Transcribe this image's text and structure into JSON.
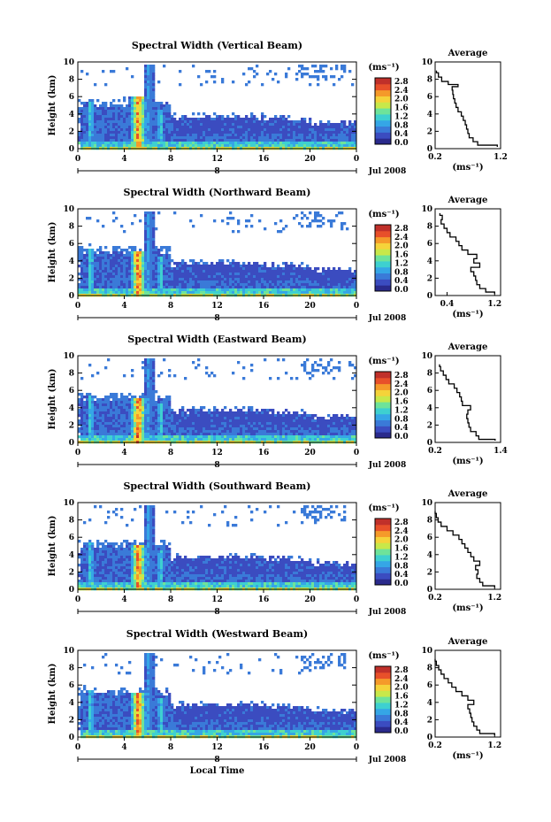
{
  "figure": {
    "xlabel": "Local Time",
    "ylabel": "Height (km)",
    "xticks": [
      "0",
      "4",
      "8",
      "12",
      "16",
      "20",
      "0"
    ],
    "yticks": [
      "0",
      "2",
      "4",
      "6",
      "8",
      "10"
    ],
    "date_label": "Jul 2008",
    "day_marker": "8",
    "unit_label": "(ms⁻¹)",
    "avg_title": "Average",
    "avg_xlabel": "(ms⁻¹)",
    "colorbar_ticks": [
      "0.0",
      "0.4",
      "0.8",
      "1.2",
      "1.6",
      "2.0",
      "2.4",
      "2.8"
    ],
    "colorscale": [
      "#2a2a8c",
      "#3b4cc0",
      "#3a7ad8",
      "#35a6e6",
      "#3ed0d0",
      "#6ee39a",
      "#c8e84a",
      "#f5d33a",
      "#f59a2a",
      "#e8502a",
      "#c0302a"
    ]
  },
  "chart_data": [
    {
      "type": "heatmap",
      "title": "Spectral Width (Vertical Beam)",
      "x_range": [
        0,
        24
      ],
      "y_range": [
        0,
        10
      ],
      "color_range": [
        0.0,
        2.8
      ],
      "avg_profile": {
        "xticks": [
          "0.2",
          "1.2"
        ],
        "xlim": [
          0.2,
          1.2
        ],
        "height": [
          0.2,
          0.6,
          1.0,
          1.5,
          2.0,
          2.5,
          3.0,
          3.5,
          4.0,
          4.5,
          5.0,
          5.5,
          6.0,
          6.5,
          7.0,
          7.3,
          7.5,
          8.0,
          8.5,
          9.0
        ],
        "value": [
          1.15,
          0.85,
          0.78,
          0.72,
          0.7,
          0.68,
          0.66,
          0.63,
          0.6,
          0.55,
          0.52,
          0.5,
          0.48,
          0.47,
          0.46,
          0.55,
          0.4,
          0.3,
          0.25,
          0.22
        ]
      }
    },
    {
      "type": "heatmap",
      "title": "Spectral Width (Northward Beam)",
      "x_range": [
        0,
        24
      ],
      "y_range": [
        0,
        10
      ],
      "color_range": [
        0.0,
        2.8
      ],
      "avg_profile": {
        "xticks": [
          "0.4",
          "1.2"
        ],
        "xlim": [
          0.2,
          1.3
        ],
        "height": [
          0.2,
          0.6,
          1.0,
          1.5,
          2.0,
          2.5,
          3.0,
          3.5,
          4.0,
          4.5,
          5.0,
          5.5,
          6.0,
          6.5,
          7.0,
          7.5,
          8.0,
          8.5,
          9.0,
          9.5
        ],
        "value": [
          1.2,
          1.05,
          0.95,
          0.9,
          0.88,
          0.85,
          0.8,
          0.95,
          0.85,
          0.9,
          0.75,
          0.65,
          0.6,
          0.55,
          0.45,
          0.4,
          0.35,
          0.3,
          0.32,
          0.28
        ]
      }
    },
    {
      "type": "heatmap",
      "title": "Spectral Width (Eastward Beam)",
      "x_range": [
        0,
        24
      ],
      "y_range": [
        0,
        10
      ],
      "color_range": [
        0.0,
        2.8
      ],
      "avg_profile": {
        "xticks": [
          "0.2",
          "1.4"
        ],
        "xlim": [
          0.2,
          1.4
        ],
        "height": [
          0.2,
          0.5,
          1.0,
          1.5,
          2.0,
          2.5,
          3.0,
          3.5,
          4.0,
          4.5,
          5.0,
          5.5,
          6.0,
          6.5,
          7.0,
          7.5,
          8.0,
          8.5,
          9.0
        ],
        "value": [
          1.3,
          1.0,
          0.95,
          0.85,
          0.82,
          0.8,
          0.78,
          0.8,
          0.85,
          0.7,
          0.68,
          0.65,
          0.6,
          0.55,
          0.45,
          0.4,
          0.35,
          0.3,
          0.28
        ]
      }
    },
    {
      "type": "heatmap",
      "title": "Spectral Width (Southward Beam)",
      "x_range": [
        0,
        24
      ],
      "y_range": [
        0,
        10
      ],
      "color_range": [
        0.0,
        2.8
      ],
      "avg_profile": {
        "xticks": [
          "0.2",
          "1.2"
        ],
        "xlim": [
          0.2,
          1.3
        ],
        "height": [
          0.2,
          0.6,
          1.0,
          1.5,
          2.0,
          2.5,
          3.0,
          3.5,
          4.0,
          4.5,
          5.0,
          5.5,
          6.0,
          6.5,
          7.0,
          7.5,
          8.0,
          8.5,
          9.0
        ],
        "value": [
          1.2,
          1.0,
          0.95,
          0.9,
          0.92,
          0.88,
          0.95,
          0.85,
          0.8,
          0.75,
          0.7,
          0.65,
          0.6,
          0.5,
          0.4,
          0.3,
          0.25,
          0.22,
          0.2
        ]
      }
    },
    {
      "type": "heatmap",
      "title": "Spectral Width (Westward Beam)",
      "x_range": [
        0,
        24
      ],
      "y_range": [
        0,
        10
      ],
      "color_range": [
        0.0,
        2.8
      ],
      "avg_profile": {
        "xticks": [
          "0.2",
          "1.2"
        ],
        "xlim": [
          0.2,
          1.3
        ],
        "height": [
          0.2,
          0.6,
          1.0,
          1.5,
          2.0,
          2.5,
          3.0,
          3.5,
          4.0,
          4.5,
          5.0,
          5.5,
          6.0,
          6.5,
          7.0,
          7.5,
          8.0,
          8.5,
          9.0
        ],
        "value": [
          1.2,
          0.95,
          0.9,
          0.85,
          0.82,
          0.8,
          0.78,
          0.75,
          0.85,
          0.75,
          0.65,
          0.55,
          0.48,
          0.42,
          0.35,
          0.3,
          0.26,
          0.22,
          0.2
        ]
      }
    }
  ]
}
